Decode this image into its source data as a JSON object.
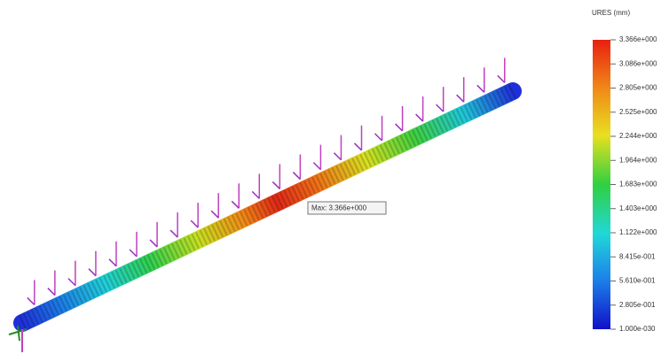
{
  "legend": {
    "title": "URES (mm)",
    "labels": [
      "3.366e+000",
      "3.086e+000",
      "2.805e+000",
      "2.525e+000",
      "2.244e+000",
      "1.964e+000",
      "1.683e+000",
      "1.403e+000",
      "1.122e+000",
      "8.415e-001",
      "5.610e-001",
      "2.805e-001",
      "1.000e-030"
    ]
  },
  "annotation": "Max: 3.366e+000"
}
